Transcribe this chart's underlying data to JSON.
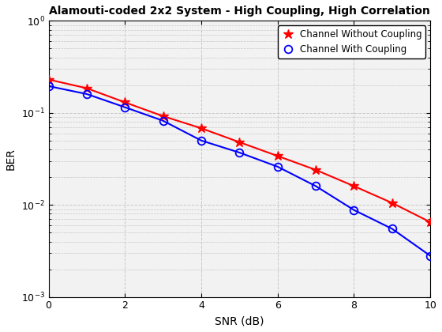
{
  "title": "Alamouti-coded 2x2 System - High Coupling, High Correlation",
  "xlabel": "SNR (dB)",
  "ylabel": "BER",
  "snr": [
    0,
    1,
    2,
    3,
    4,
    5,
    6,
    7,
    8,
    9,
    10
  ],
  "ber_without_coupling": [
    0.23,
    0.185,
    0.13,
    0.092,
    0.068,
    0.048,
    0.034,
    0.024,
    0.016,
    0.0105,
    0.0065
  ],
  "ber_with_coupling": [
    0.195,
    0.16,
    0.115,
    0.082,
    0.05,
    0.037,
    0.026,
    0.016,
    0.0088,
    0.0055,
    0.0028
  ],
  "color_without": "#ff0000",
  "color_with": "#0000ff",
  "legend_without": "Channel Without Coupling",
  "legend_with": "Channel With Coupling",
  "ylim": [
    0.001,
    1.0
  ],
  "xlim": [
    0,
    10
  ],
  "plot_bg_color": "#f2f2f2",
  "fig_bg_color": "#ffffff",
  "grid_color": "#c8c8c8",
  "title_fontsize": 10,
  "label_fontsize": 10,
  "tick_fontsize": 9,
  "legend_fontsize": 8.5,
  "linewidth": 1.5,
  "marker_size_star": 9,
  "marker_size_circle": 7
}
